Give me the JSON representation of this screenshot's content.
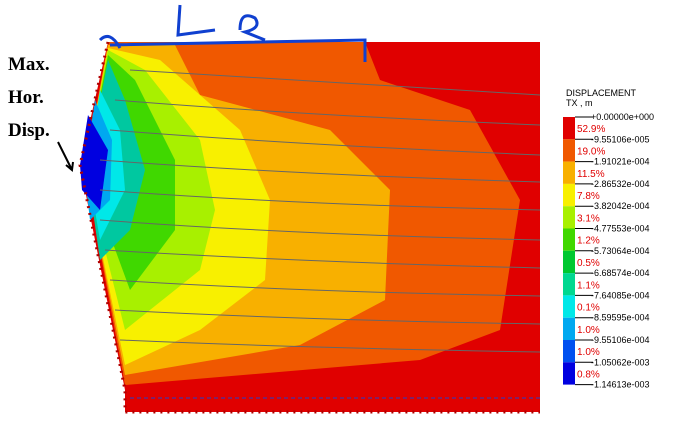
{
  "annotations": [
    "Max.",
    "Hor.",
    "Disp."
  ],
  "legend": {
    "title": "DISPLACEMENT",
    "subtitle": "TX , m",
    "bounds": [
      "+0.00000e+000",
      "-9.55106e-005",
      "-1.91021e-004",
      "-2.86532e-004",
      "-3.82042e-004",
      "-4.77553e-004",
      "-5.73064e-004",
      "-6.68574e-004",
      "-7.64085e-004",
      "-8.59595e-004",
      "-9.55106e-004",
      "-1.05062e-003",
      "-1.14613e-003"
    ],
    "bands": [
      {
        "percent": "52.9%",
        "color": "#e00000"
      },
      {
        "percent": "19.0%",
        "color": "#f05800"
      },
      {
        "percent": "11.5%",
        "color": "#f8b000"
      },
      {
        "percent": "7.8%",
        "color": "#f8f000"
      },
      {
        "percent": "3.1%",
        "color": "#a8f000"
      },
      {
        "percent": "1.2%",
        "color": "#40d800"
      },
      {
        "percent": "0.5%",
        "color": "#00c830"
      },
      {
        "percent": "1.1%",
        "color": "#00d890"
      },
      {
        "percent": "0.1%",
        "color": "#00e8e8"
      },
      {
        "percent": "1.0%",
        "color": "#00a8f0"
      },
      {
        "percent": "1.0%",
        "color": "#0050f0"
      },
      {
        "percent": "0.8%",
        "color": "#0000e0"
      }
    ]
  }
}
